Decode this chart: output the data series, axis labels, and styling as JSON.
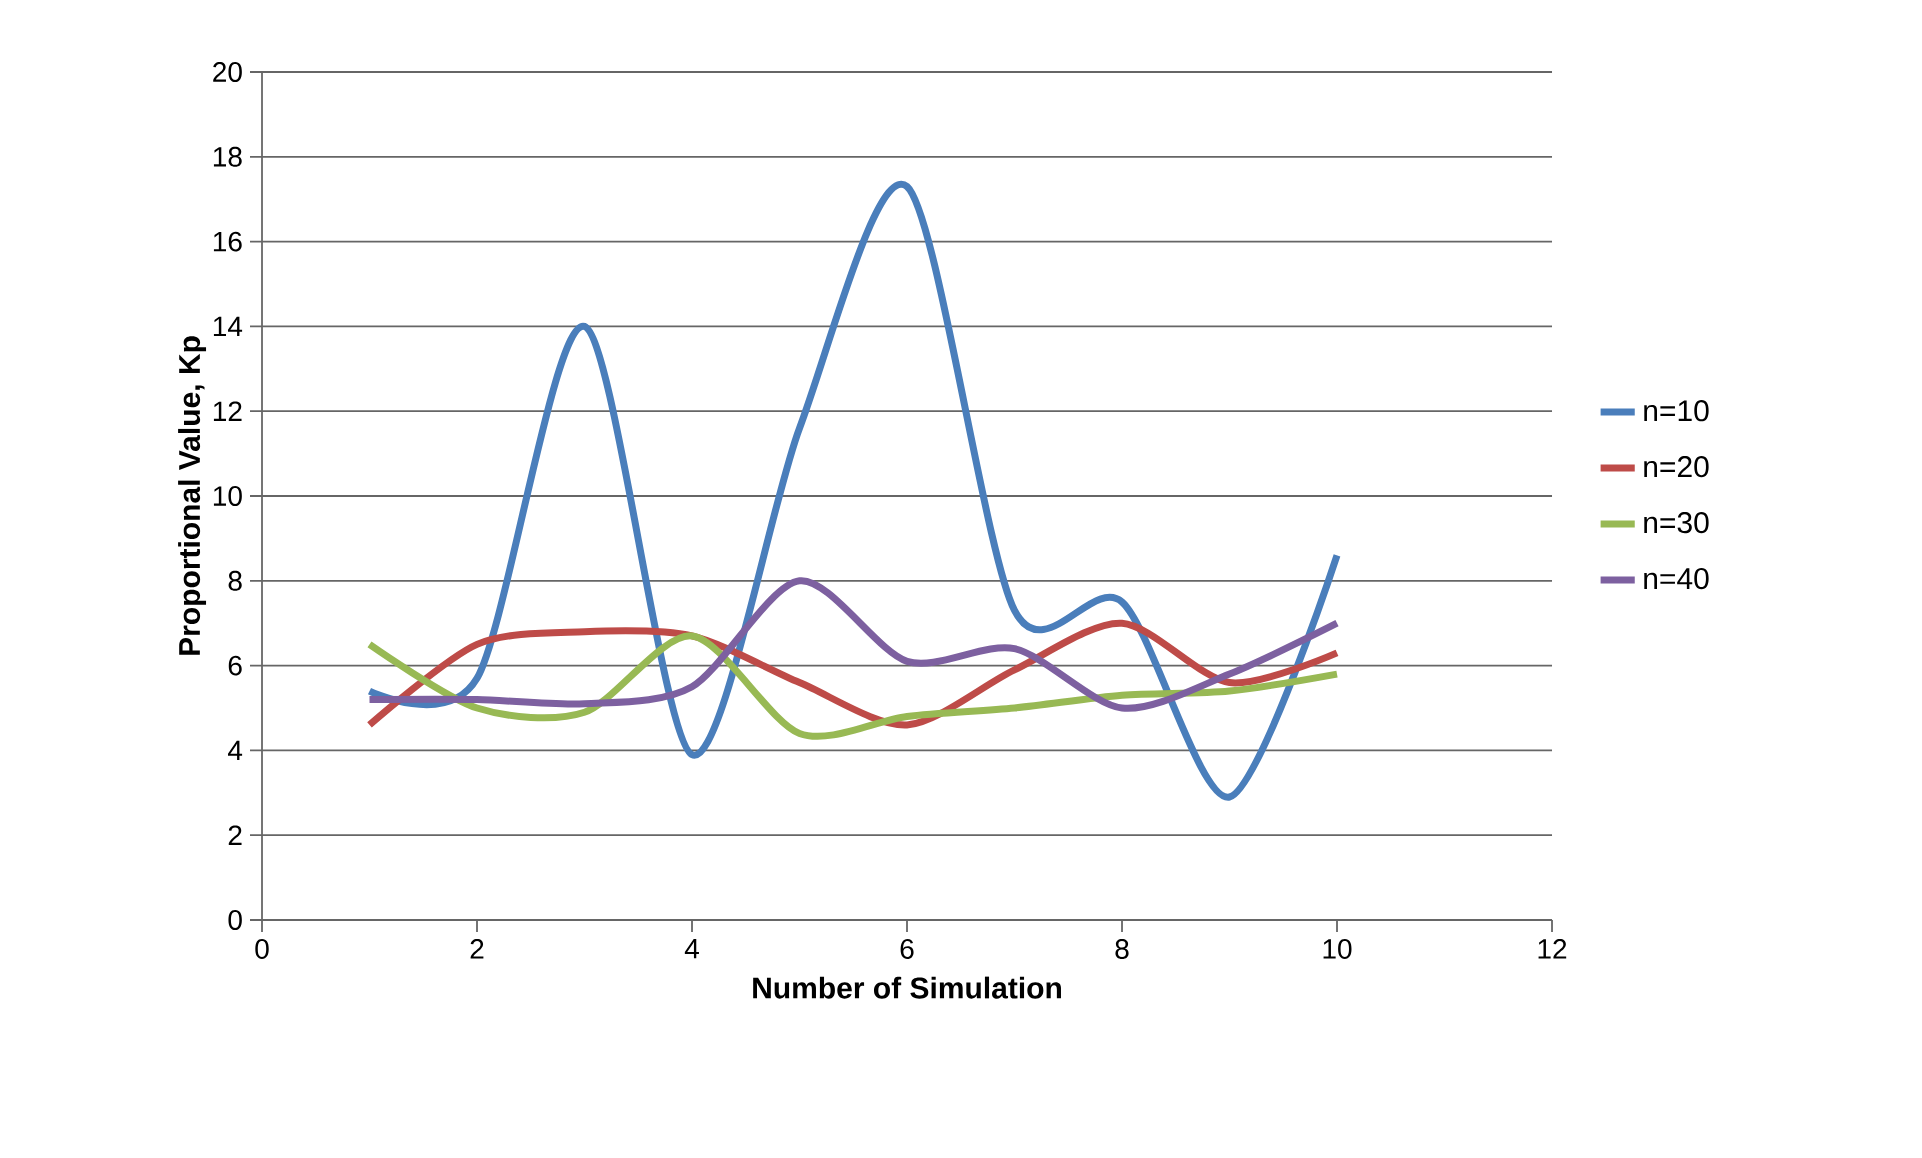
{
  "chart_data": {
    "type": "line",
    "xlabel": "Number of Simulation",
    "ylabel": "Proportional Value, Kp",
    "x": [
      1,
      2,
      3,
      4,
      5,
      6,
      7,
      8,
      9,
      10
    ],
    "series": [
      {
        "name": "n=10",
        "color": "#4a7ebb",
        "values": [
          5.4,
          5.7,
          14.0,
          3.9,
          11.6,
          17.3,
          7.3,
          7.5,
          2.9,
          8.6
        ]
      },
      {
        "name": "n=20",
        "color": "#be4b48",
        "values": [
          4.6,
          6.5,
          6.8,
          6.7,
          5.6,
          4.6,
          5.9,
          7.0,
          5.6,
          6.3
        ]
      },
      {
        "name": "n=30",
        "color": "#98b954",
        "values": [
          6.5,
          5.0,
          4.9,
          6.7,
          4.4,
          4.8,
          5.0,
          5.3,
          5.4,
          5.8
        ]
      },
      {
        "name": "n=40",
        "color": "#7d60a0",
        "values": [
          5.2,
          5.2,
          5.1,
          5.5,
          8.0,
          6.1,
          6.4,
          5.0,
          5.8,
          7.0
        ]
      }
    ],
    "xlim": [
      0,
      12
    ],
    "xticks": [
      0,
      2,
      4,
      6,
      8,
      10,
      12
    ],
    "ylim": [
      0,
      20
    ],
    "yticks": [
      0,
      2,
      4,
      6,
      8,
      10,
      12,
      14,
      16,
      18,
      20
    ],
    "grid": "y",
    "legend": "right",
    "marker": "none",
    "line_style": "solid"
  }
}
